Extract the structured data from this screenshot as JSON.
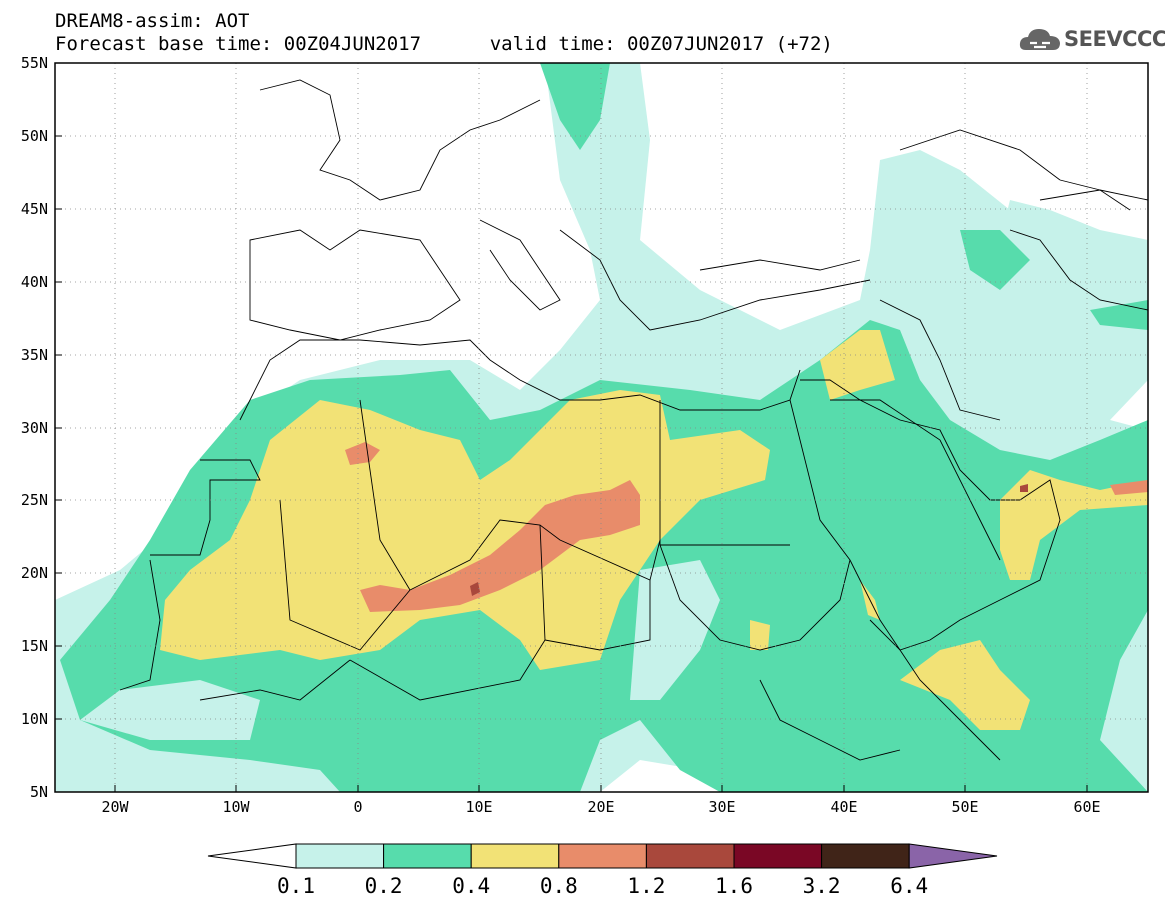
{
  "header": {
    "title": "DREAM8-assim: AOT",
    "base_time_label": "Forecast base time: 00Z04JUN2017",
    "valid_time_label": "valid time: 00Z07JUN2017 (+72)"
  },
  "logo": {
    "text": "SEEVCCC",
    "icon": "cloud-icon"
  },
  "map": {
    "lat_labels": [
      "55N",
      "50N",
      "45N",
      "40N",
      "35N",
      "30N",
      "25N",
      "20N",
      "15N",
      "10N",
      "5N"
    ],
    "lon_labels": [
      "20W",
      "10W",
      "0",
      "10E",
      "20E",
      "30E",
      "40E",
      "50E",
      "60E"
    ]
  },
  "colorbar": {
    "labels": [
      "0.1",
      "0.2",
      "0.4",
      "0.8",
      "1.2",
      "1.6",
      "3.2",
      "6.4"
    ],
    "colors": [
      "#c6f2ea",
      "#57dcac",
      "#f2e276",
      "#e88c6a",
      "#a9483c",
      "#7a0725",
      "#402418",
      "#8a64a8"
    ],
    "low_arrow_color": "#ffffff"
  },
  "colors": {
    "class_0_1": "#c6f2ea",
    "class_0_2": "#57dcac",
    "class_0_4": "#f2e276",
    "class_0_8": "#e88c6a",
    "class_1_2": "#a9483c"
  }
}
